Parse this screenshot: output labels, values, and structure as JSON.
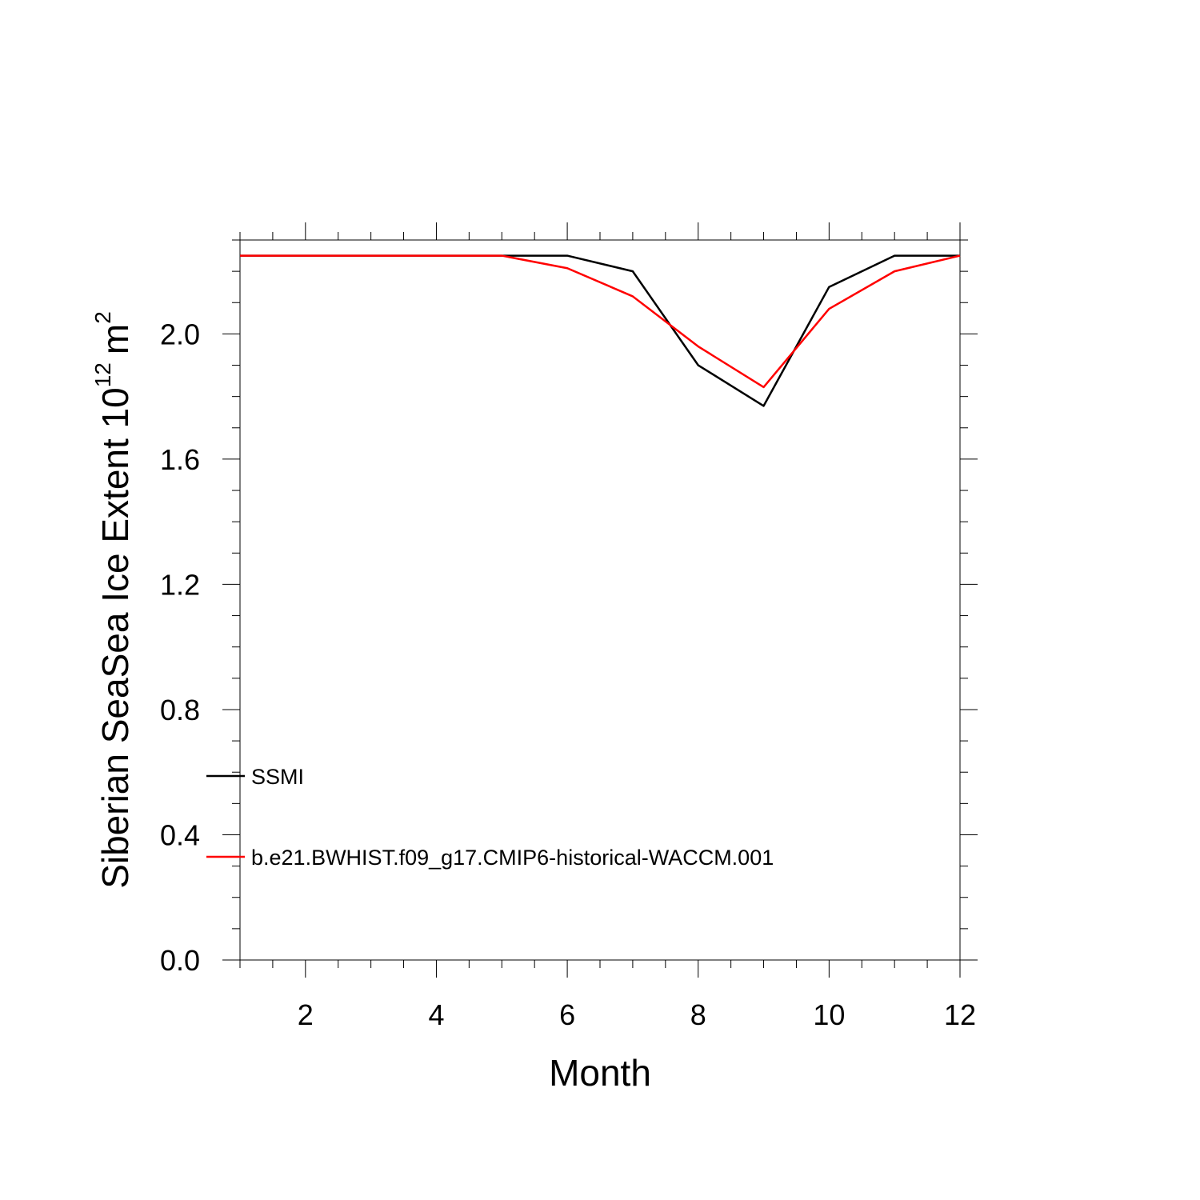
{
  "chart_data": {
    "type": "line",
    "title": "",
    "xlabel": "Month",
    "ylabel": "Siberian SeaSea Ice Extent 10",
    "ylabel_superscript": "12",
    "ylabel_unit": "m",
    "ylabel_unit_superscript": "2",
    "xlim": [
      1,
      12
    ],
    "ylim": [
      0.0,
      2.3
    ],
    "x_ticks": [
      2,
      4,
      6,
      8,
      10,
      12
    ],
    "x_tick_labels": [
      "2",
      "4",
      "6",
      "8",
      "10",
      "12"
    ],
    "y_ticks": [
      0.0,
      0.4,
      0.8,
      1.2,
      1.6,
      2.0
    ],
    "y_tick_labels": [
      "0.0",
      "0.4",
      "0.8",
      "1.2",
      "1.6",
      "2.0"
    ],
    "grid": false,
    "legend_position": "bottom-left",
    "x": [
      1,
      2,
      3,
      4,
      5,
      6,
      7,
      8,
      9,
      10,
      11,
      12
    ],
    "series": [
      {
        "name": "SSMI",
        "color": "#000000",
        "values": [
          2.25,
          2.25,
          2.25,
          2.25,
          2.25,
          2.25,
          2.2,
          1.9,
          1.77,
          2.15,
          2.25,
          2.25
        ]
      },
      {
        "name": "b.e21.BWHIST.f09_g17.CMIP6-historical-WACCM.001",
        "color": "#ff0000",
        "values": [
          2.25,
          2.25,
          2.25,
          2.25,
          2.25,
          2.21,
          2.12,
          1.96,
          1.83,
          2.08,
          2.2,
          2.25
        ]
      }
    ]
  }
}
